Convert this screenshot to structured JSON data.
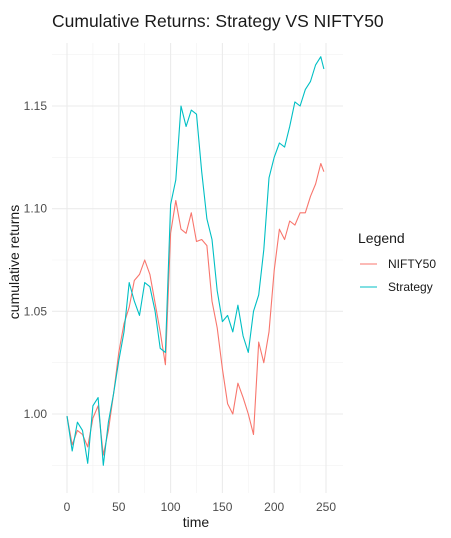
{
  "chart_data": {
    "type": "line",
    "title": "Cumulative Returns: Strategy VS NIFTY50",
    "xlabel": "time",
    "ylabel": "cumulative returns",
    "xlim": [
      0,
      250
    ],
    "ylim": [
      0.965,
      1.18
    ],
    "x_ticks": [
      0,
      50,
      100,
      150,
      200,
      250
    ],
    "y_ticks": [
      1.0,
      1.05,
      1.1,
      1.15
    ],
    "y_tick_labels": [
      "1.00",
      "1.05",
      "1.10",
      "1.15"
    ],
    "grid": true,
    "legend": {
      "title": "Legend",
      "placement": "right"
    },
    "series": [
      {
        "name": "NIFTY50",
        "color": "#f8766d",
        "x": [
          0,
          5,
          10,
          15,
          20,
          25,
          30,
          35,
          40,
          45,
          50,
          55,
          60,
          65,
          70,
          75,
          80,
          85,
          90,
          95,
          100,
          105,
          110,
          115,
          120,
          125,
          130,
          135,
          140,
          145,
          150,
          155,
          160,
          165,
          170,
          175,
          180,
          185,
          190,
          195,
          200,
          205,
          210,
          215,
          220,
          225,
          230,
          235,
          240,
          245,
          248
        ],
        "values": [
          0.999,
          0.985,
          0.992,
          0.99,
          0.984,
          0.998,
          1.004,
          0.98,
          0.992,
          1.01,
          1.03,
          1.044,
          1.052,
          1.065,
          1.068,
          1.075,
          1.068,
          1.054,
          1.04,
          1.024,
          1.088,
          1.104,
          1.09,
          1.088,
          1.098,
          1.084,
          1.085,
          1.082,
          1.055,
          1.042,
          1.022,
          1.005,
          1.0,
          1.015,
          1.008,
          1.0,
          0.99,
          1.035,
          1.025,
          1.04,
          1.07,
          1.09,
          1.085,
          1.094,
          1.092,
          1.098,
          1.098,
          1.106,
          1.112,
          1.122,
          1.118
        ]
      },
      {
        "name": "Strategy",
        "color": "#00bfc4",
        "x": [
          0,
          5,
          10,
          15,
          20,
          25,
          30,
          35,
          40,
          45,
          50,
          55,
          60,
          65,
          70,
          75,
          80,
          85,
          90,
          95,
          100,
          105,
          110,
          115,
          120,
          125,
          130,
          135,
          140,
          145,
          150,
          155,
          160,
          165,
          170,
          175,
          180,
          185,
          190,
          195,
          200,
          205,
          210,
          215,
          220,
          225,
          230,
          235,
          240,
          245,
          248
        ],
        "values": [
          0.999,
          0.982,
          0.996,
          0.992,
          0.976,
          1.004,
          1.008,
          0.975,
          0.996,
          1.01,
          1.026,
          1.04,
          1.064,
          1.055,
          1.048,
          1.064,
          1.062,
          1.05,
          1.032,
          1.03,
          1.102,
          1.114,
          1.15,
          1.14,
          1.148,
          1.146,
          1.118,
          1.095,
          1.085,
          1.06,
          1.045,
          1.048,
          1.04,
          1.053,
          1.038,
          1.03,
          1.05,
          1.058,
          1.08,
          1.115,
          1.125,
          1.132,
          1.13,
          1.14,
          1.152,
          1.15,
          1.158,
          1.162,
          1.17,
          1.174,
          1.168
        ]
      }
    ]
  }
}
